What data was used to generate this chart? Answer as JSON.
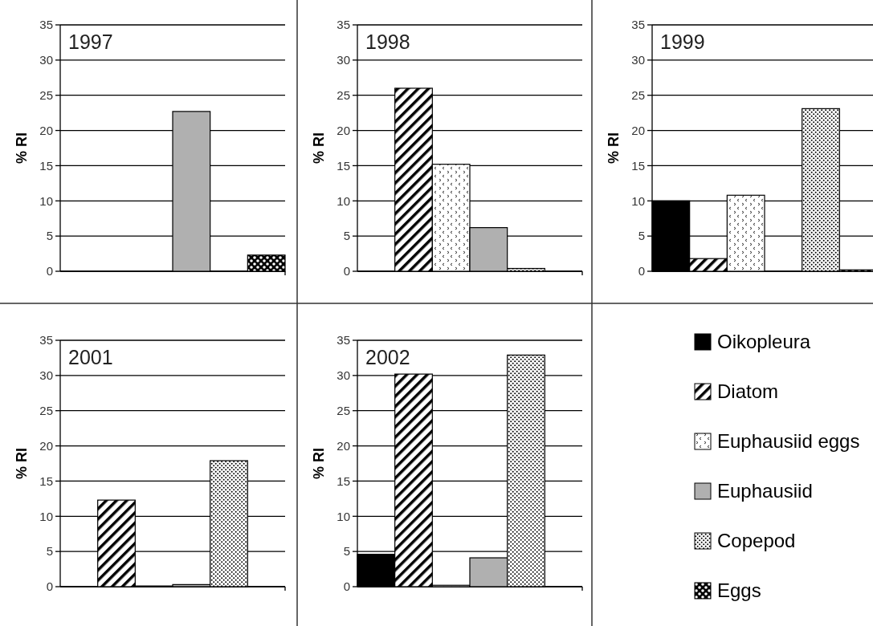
{
  "chart_data": [
    {
      "type": "bar",
      "title": "1997",
      "ylabel": "% RI",
      "categories": [
        null
      ],
      "ylim": [
        0,
        35
      ],
      "yticks": [
        0,
        5,
        10,
        15,
        20,
        25,
        30,
        35
      ],
      "grid": "y",
      "series": [
        {
          "color": "#000000",
          "values": [
            null
          ]
        },
        {
          "color": "#000000",
          "values": [
            null
          ]
        },
        {
          "color": "#000000",
          "values": [
            null
          ]
        },
        {
          "color": "#b0b0b0",
          "values": [
            22.7
          ]
        },
        {
          "color": "#000000",
          "values": [
            null
          ]
        },
        {
          "color": "#000000",
          "values": [
            2.3
          ]
        }
      ]
    },
    {
      "type": "bar",
      "title": "1998",
      "ylabel": "% RI",
      "categories": [
        null
      ],
      "ylim": [
        0,
        35
      ],
      "yticks": [
        0,
        5,
        10,
        15,
        20,
        25,
        30,
        35
      ],
      "grid": "y",
      "series": [
        {
          "color": "#000000",
          "values": [
            null
          ]
        },
        {
          "color": "#000000",
          "values": [
            26
          ]
        },
        {
          "color": "#000000",
          "values": [
            15.2
          ]
        },
        {
          "color": "#b0b0b0",
          "values": [
            6.2
          ]
        },
        {
          "color": "#000000",
          "values": [
            0.4
          ]
        },
        {
          "color": "#000000",
          "values": [
            null
          ]
        }
      ]
    },
    {
      "type": "bar",
      "title": "1999",
      "ylabel": "% RI",
      "categories": [
        null
      ],
      "ylim": [
        0,
        35
      ],
      "yticks": [
        0,
        5,
        10,
        15,
        20,
        25,
        30,
        35
      ],
      "grid": "y",
      "series": [
        {
          "color": "#000000",
          "values": [
            10
          ]
        },
        {
          "color": "#000000",
          "values": [
            1.8
          ]
        },
        {
          "color": "#000000",
          "values": [
            10.8
          ]
        },
        {
          "color": "#b0b0b0",
          "values": [
            null
          ]
        },
        {
          "color": "#000000",
          "values": [
            23.1
          ]
        },
        {
          "color": "#000000",
          "values": [
            0.2
          ]
        }
      ]
    },
    {
      "type": "bar",
      "title": "2001",
      "ylabel": "% RI",
      "categories": [
        null
      ],
      "ylim": [
        0,
        35
      ],
      "yticks": [
        0,
        5,
        10,
        15,
        20,
        25,
        30,
        35
      ],
      "grid": "y",
      "series": [
        {
          "color": "#000000",
          "values": [
            null
          ]
        },
        {
          "color": "#000000",
          "values": [
            12.3
          ]
        },
        {
          "color": "#000000",
          "values": [
            0.1
          ]
        },
        {
          "color": "#b0b0b0",
          "values": [
            0.3
          ]
        },
        {
          "color": "#000000",
          "values": [
            17.9
          ]
        },
        {
          "color": "#000000",
          "values": [
            null
          ]
        }
      ]
    },
    {
      "type": "bar",
      "title": "2002",
      "ylabel": "% RI",
      "categories": [
        null
      ],
      "ylim": [
        0,
        35
      ],
      "yticks": [
        0,
        5,
        10,
        15,
        20,
        25,
        30,
        35
      ],
      "grid": "y",
      "legend": "right",
      "series": [
        {
          "name": "Oikopleura",
          "color": "#000000",
          "values": [
            4.6
          ]
        },
        {
          "name": "Diatom",
          "color": "#000000",
          "values": [
            30.2
          ]
        },
        {
          "name": "Euphausiid eggs",
          "color": "#000000",
          "values": [
            0.2
          ]
        },
        {
          "name": "Euphausiid",
          "color": "#b0b0b0",
          "values": [
            4.1
          ]
        },
        {
          "name": "Copepod",
          "color": "#000000",
          "values": [
            32.9
          ]
        },
        {
          "name": "Eggs",
          "color": "#000000",
          "values": [
            null
          ]
        }
      ]
    }
  ]
}
